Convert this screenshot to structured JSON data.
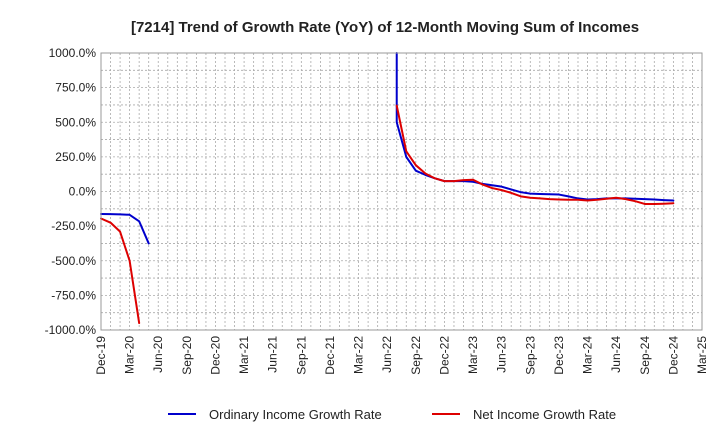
{
  "chart_data": {
    "type": "line",
    "title": "[7214]  Trend of Growth Rate (YoY) of 12-Month Moving Sum of Incomes",
    "xlabel": "",
    "ylabel": "",
    "ylim": [
      -1000,
      1000
    ],
    "y_ticks": [
      1000,
      750,
      500,
      250,
      0,
      -250,
      -500,
      -750,
      -1000
    ],
    "y_tick_labels": [
      "1000.0%",
      "750.0%",
      "500.0%",
      "250.0%",
      "0.0%",
      "-250.0%",
      "-500.0%",
      "-750.0%",
      "-1000.0%"
    ],
    "x_range": [
      "2019-12",
      "2025-03"
    ],
    "x_tick_labels": [
      "Dec-19",
      "Mar-20",
      "Jun-20",
      "Sep-20",
      "Dec-20",
      "Mar-21",
      "Jun-21",
      "Sep-21",
      "Dec-21",
      "Mar-22",
      "Jun-22",
      "Sep-22",
      "Dec-22",
      "Mar-23",
      "Jun-23",
      "Sep-23",
      "Dec-23",
      "Mar-24",
      "Jun-24",
      "Sep-24",
      "Dec-24",
      "Mar-25"
    ],
    "grid": true,
    "legend_position": "bottom",
    "series": [
      {
        "name": "Ordinary Income Growth Rate",
        "color": "#0000cc",
        "segments": [
          [
            [
              "2019-12",
              -162
            ],
            [
              "2020-01",
              -163
            ],
            [
              "2020-02",
              -165
            ],
            [
              "2020-03",
              -168
            ],
            [
              "2020-04",
              -215
            ],
            [
              "2020-05",
              -375
            ]
          ],
          [
            [
              "2022-07",
              1000
            ],
            [
              "2022-07",
              500
            ],
            [
              "2022-08",
              250
            ],
            [
              "2022-09",
              150
            ],
            [
              "2022-10",
              120
            ],
            [
              "2022-11",
              95
            ],
            [
              "2022-12",
              75
            ],
            [
              "2023-01",
              75
            ],
            [
              "2023-02",
              75
            ],
            [
              "2023-03",
              70
            ],
            [
              "2023-04",
              55
            ],
            [
              "2023-05",
              45
            ],
            [
              "2023-06",
              35
            ],
            [
              "2023-07",
              15
            ],
            [
              "2023-08",
              -5
            ],
            [
              "2023-09",
              -15
            ],
            [
              "2023-10",
              -18
            ],
            [
              "2023-11",
              -20
            ],
            [
              "2023-12",
              -22
            ],
            [
              "2024-01",
              -35
            ],
            [
              "2024-02",
              -50
            ],
            [
              "2024-03",
              -58
            ],
            [
              "2024-04",
              -55
            ],
            [
              "2024-05",
              -50
            ],
            [
              "2024-06",
              -50
            ],
            [
              "2024-07",
              -50
            ],
            [
              "2024-08",
              -52
            ],
            [
              "2024-09",
              -55
            ],
            [
              "2024-10",
              -58
            ],
            [
              "2024-11",
              -62
            ],
            [
              "2024-12",
              -65
            ]
          ]
        ]
      },
      {
        "name": "Net Income Growth Rate",
        "color": "#dd0000",
        "segments": [
          [
            [
              "2019-12",
              -195
            ],
            [
              "2020-01",
              -225
            ],
            [
              "2020-02",
              -290
            ],
            [
              "2020-03",
              -500
            ],
            [
              "2020-04",
              -950
            ]
          ],
          [
            [
              "2022-07",
              620
            ],
            [
              "2022-08",
              290
            ],
            [
              "2022-09",
              190
            ],
            [
              "2022-10",
              130
            ],
            [
              "2022-11",
              95
            ],
            [
              "2022-12",
              75
            ],
            [
              "2023-01",
              75
            ],
            [
              "2023-02",
              82
            ],
            [
              "2023-03",
              85
            ],
            [
              "2023-04",
              50
            ],
            [
              "2023-05",
              25
            ],
            [
              "2023-06",
              10
            ],
            [
              "2023-07",
              -10
            ],
            [
              "2023-08",
              -35
            ],
            [
              "2023-09",
              -45
            ],
            [
              "2023-10",
              -50
            ],
            [
              "2023-11",
              -55
            ],
            [
              "2023-12",
              -58
            ],
            [
              "2024-01",
              -60
            ],
            [
              "2024-02",
              -60
            ],
            [
              "2024-03",
              -65
            ],
            [
              "2024-04",
              -60
            ],
            [
              "2024-05",
              -52
            ],
            [
              "2024-06",
              -45
            ],
            [
              "2024-07",
              -55
            ],
            [
              "2024-08",
              -70
            ],
            [
              "2024-09",
              -90
            ],
            [
              "2024-10",
              -90
            ],
            [
              "2024-11",
              -88
            ],
            [
              "2024-12",
              -85
            ]
          ]
        ]
      }
    ]
  }
}
